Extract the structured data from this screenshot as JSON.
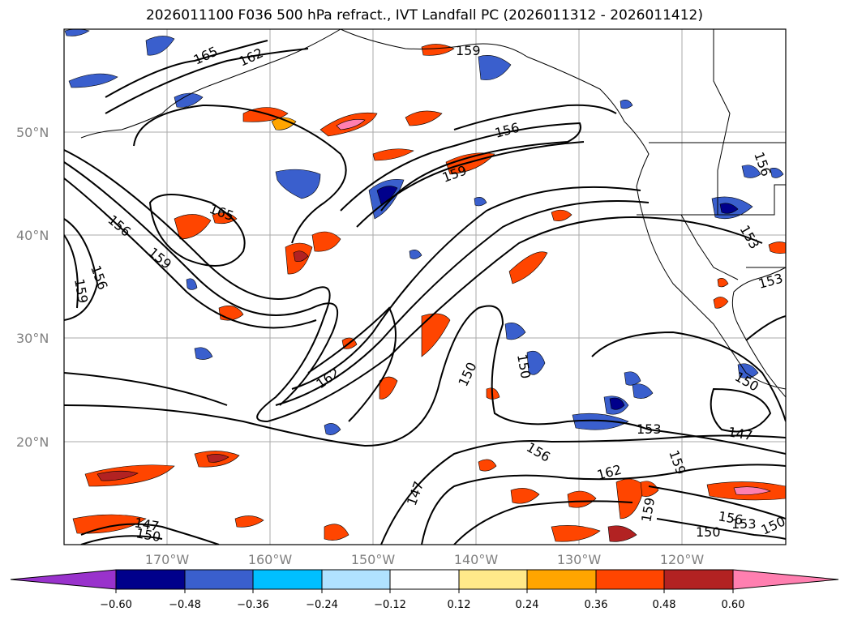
{
  "title": "2026011100 F036 500 hPa refract., IVT Landfall PC (2026011312 - 2026011412)",
  "map": {
    "lat_labels": [
      "50°N",
      "40°N",
      "30°N",
      "20°N"
    ],
    "lon_labels": [
      "170°W",
      "160°W",
      "150°W",
      "140°W",
      "130°W",
      "120°W"
    ],
    "contour_labels": [
      "165",
      "162",
      "159",
      "156",
      "159",
      "165",
      "156",
      "159",
      "156",
      "159",
      "162",
      "150",
      "150",
      "147",
      "156",
      "162",
      "153",
      "147",
      "150",
      "159",
      "153",
      "153",
      "156",
      "147",
      "150",
      "150",
      "159",
      "153",
      "150",
      "156"
    ]
  },
  "colorbar": {
    "tick_labels": [
      "−0.60",
      "−0.48",
      "−0.36",
      "−0.24",
      "−0.12",
      "0.12",
      "0.24",
      "0.36",
      "0.48",
      "0.60"
    ],
    "colors": [
      "#9932cc",
      "#00008b",
      "#3a5fcd",
      "#00bfff",
      "#b0e2ff",
      "#ffffff",
      "#ffe98a",
      "#ffa500",
      "#ff4500",
      "#b22222",
      "#ff7fb0"
    ]
  }
}
